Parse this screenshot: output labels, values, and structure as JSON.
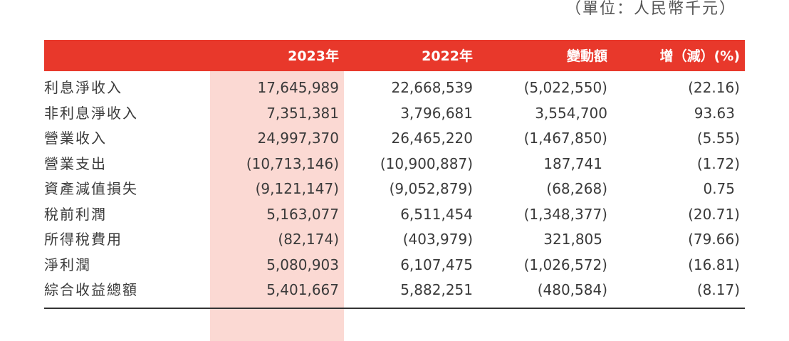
{
  "unit_note": "（單位：人民幣千元）",
  "table": {
    "headers": [
      "2023年",
      "2022年",
      "變動額",
      "增（減）(%)"
    ],
    "rows": [
      {
        "label": "利息淨收入",
        "v2023": "17,645,989",
        "v2022": "22,668,539",
        "change": "(5,022,550)",
        "pct": "(22.16)"
      },
      {
        "label": "非利息淨收入",
        "v2023": "7,351,381",
        "v2022": "3,796,681",
        "change": "3,554,700",
        "pct": "93.63"
      },
      {
        "label": "營業收入",
        "v2023": "24,997,370",
        "v2022": "26,465,220",
        "change": "(1,467,850)",
        "pct": "(5.55)"
      },
      {
        "label": "營業支出",
        "v2023": "(10,713,146)",
        "v2022": "(10,900,887)",
        "change": "187,741",
        "pct": "(1.72)"
      },
      {
        "label": "資產減值損失",
        "v2023": "(9,121,147)",
        "v2022": "(9,052,879)",
        "change": "(68,268)",
        "pct": "0.75"
      },
      {
        "label": "稅前利潤",
        "v2023": "5,163,077",
        "v2022": "6,511,454",
        "change": "(1,348,377)",
        "pct": "(20.71)"
      },
      {
        "label": "所得稅費用",
        "v2023": "(82,174)",
        "v2022": "(403,979)",
        "change": "321,805",
        "pct": "(79.66)"
      },
      {
        "label": "淨利潤",
        "v2023": "5,080,903",
        "v2022": "6,107,475",
        "change": "(1,026,572)",
        "pct": "(16.81)"
      },
      {
        "label": "綜合收益總額",
        "v2023": "5,401,667",
        "v2022": "5,882,251",
        "change": "(480,584)",
        "pct": "(8.17)"
      }
    ]
  },
  "colors": {
    "header_bg": "#e8382b",
    "highlight_col": "#fbd9d3",
    "text": "#3a3a3a"
  }
}
